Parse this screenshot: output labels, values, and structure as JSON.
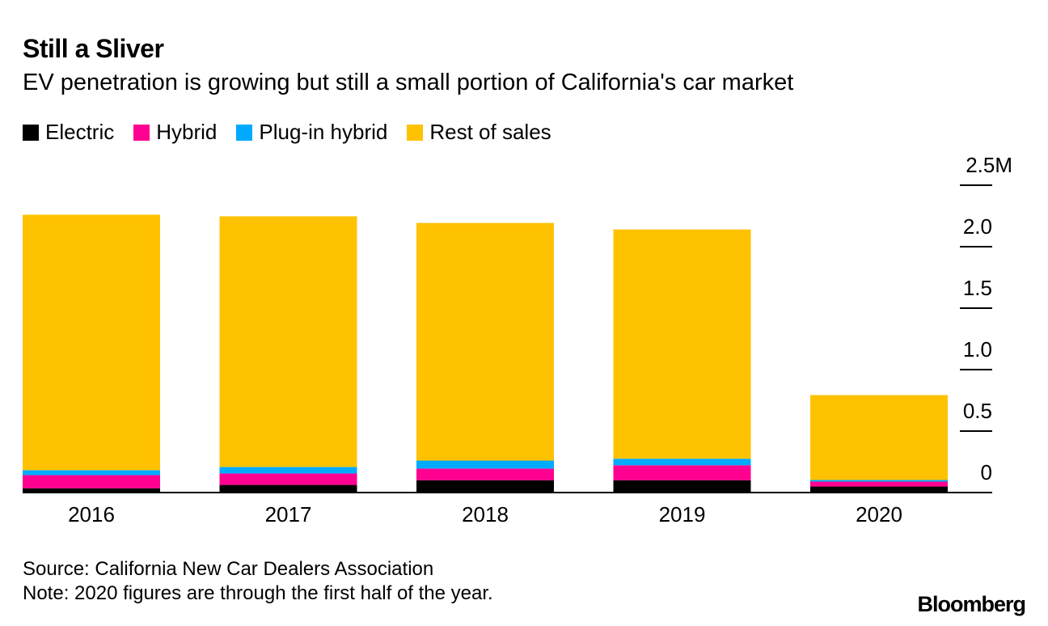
{
  "title": "Still a Sliver",
  "subtitle": "EV penetration is growing but still a small portion of California's car market",
  "source": "Source: California New Car Dealers Association",
  "note": "Note: 2020 figures are through the first half of the year.",
  "logo": "Bloomberg",
  "chart_data": {
    "type": "bar",
    "stacked": true,
    "categories": [
      "2016",
      "2017",
      "2018",
      "2019",
      "2020"
    ],
    "series": [
      {
        "name": "Electric",
        "color": "#000000",
        "values": [
          0.035,
          0.062,
          0.1,
          0.1,
          0.049
        ]
      },
      {
        "name": "Hybrid",
        "color": "#ff0090",
        "values": [
          0.107,
          0.093,
          0.095,
          0.122,
          0.04
        ]
      },
      {
        "name": "Plug-in hybrid",
        "color": "#00aaff",
        "values": [
          0.04,
          0.053,
          0.065,
          0.053,
          0.013
        ]
      },
      {
        "name": "Rest of sales",
        "color": "#ffc200",
        "values": [
          2.078,
          2.039,
          1.933,
          1.865,
          0.691
        ]
      }
    ],
    "ylim": [
      0,
      2.5
    ],
    "yticks": [
      0,
      0.5,
      1.0,
      1.5,
      2.0,
      2.5
    ],
    "ytick_labels": [
      "0",
      "0.5",
      "1.0",
      "1.5",
      "2.0",
      "2.5M"
    ],
    "axis_position": "right",
    "legend": "top-left",
    "grid": false
  }
}
